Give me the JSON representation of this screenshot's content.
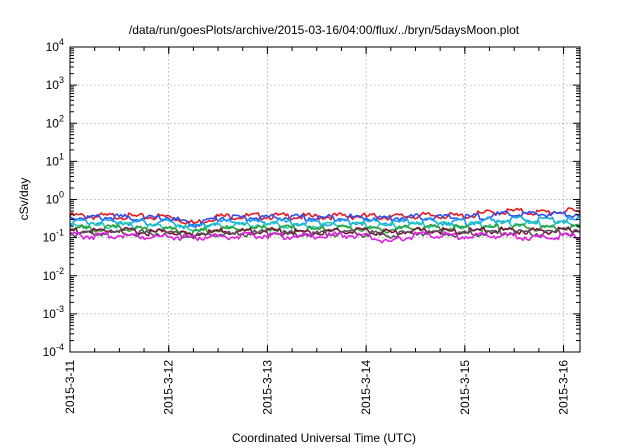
{
  "chart_data": {
    "type": "line",
    "title": "/data/run/goesPlots/archive/2015-03-16/04:00/flux/../bryn/5daysMoon.plot",
    "xlabel": "Coordinated Universal Time (UTC)",
    "ylabel": "cSv/day",
    "yscale": "log",
    "ylim": [
      0.0001,
      10000
    ],
    "xlim": [
      "2015-03-11",
      "2015-03-16 04:00"
    ],
    "grid": true,
    "legend": "none",
    "x_ticks": [
      "2015-3-11",
      "2015-3-12",
      "2015-3-13",
      "2015-3-14",
      "2015-3-15",
      "2015-3-16"
    ],
    "y_ticks": [
      {
        "base": "10",
        "exp": "-4",
        "value": 0.0001
      },
      {
        "base": "10",
        "exp": "-3",
        "value": 0.001
      },
      {
        "base": "10",
        "exp": "-2",
        "value": 0.01
      },
      {
        "base": "10",
        "exp": "-1",
        "value": 0.1
      },
      {
        "base": "10",
        "exp": "0",
        "value": 1
      },
      {
        "base": "10",
        "exp": "1",
        "value": 10
      },
      {
        "base": "10",
        "exp": "2",
        "value": 100
      },
      {
        "base": "10",
        "exp": "3",
        "value": 1000
      },
      {
        "base": "10",
        "exp": "4",
        "value": 10000
      }
    ],
    "x": [
      "2015-03-11 00:00",
      "2015-03-11 06:00",
      "2015-03-11 12:00",
      "2015-03-11 18:00",
      "2015-03-12 00:00",
      "2015-03-12 06:00",
      "2015-03-12 12:00",
      "2015-03-12 18:00",
      "2015-03-13 00:00",
      "2015-03-13 06:00",
      "2015-03-13 12:00",
      "2015-03-13 18:00",
      "2015-03-14 00:00",
      "2015-03-14 06:00",
      "2015-03-14 12:00",
      "2015-03-14 18:00",
      "2015-03-15 00:00",
      "2015-03-15 06:00",
      "2015-03-15 12:00",
      "2015-03-15 18:00",
      "2015-03-16 00:00",
      "2015-03-16 04:00"
    ],
    "series": [
      {
        "color": "#e8191f",
        "values": [
          0.42,
          0.4,
          0.41,
          0.38,
          0.4,
          0.26,
          0.4,
          0.4,
          0.41,
          0.4,
          0.39,
          0.41,
          0.4,
          0.39,
          0.41,
          0.42,
          0.4,
          0.5,
          0.55,
          0.5,
          0.55,
          0.52
        ]
      },
      {
        "color": "#2f4ff0",
        "values": [
          0.38,
          0.37,
          0.38,
          0.35,
          0.37,
          0.24,
          0.37,
          0.37,
          0.38,
          0.37,
          0.36,
          0.38,
          0.37,
          0.36,
          0.38,
          0.38,
          0.37,
          0.42,
          0.46,
          0.45,
          0.47,
          0.46
        ]
      },
      {
        "color": "#1aa4e8",
        "values": [
          0.29,
          0.28,
          0.29,
          0.27,
          0.28,
          0.2,
          0.28,
          0.28,
          0.29,
          0.28,
          0.27,
          0.29,
          0.28,
          0.27,
          0.29,
          0.29,
          0.28,
          0.31,
          0.33,
          0.32,
          0.33,
          0.32
        ]
      },
      {
        "color": "#20c8c0",
        "values": [
          0.24,
          0.23,
          0.24,
          0.22,
          0.23,
          0.17,
          0.23,
          0.23,
          0.24,
          0.23,
          0.22,
          0.24,
          0.23,
          0.22,
          0.24,
          0.24,
          0.23,
          0.25,
          0.26,
          0.25,
          0.26,
          0.25
        ]
      },
      {
        "color": "#30a030",
        "values": [
          0.2,
          0.19,
          0.2,
          0.18,
          0.19,
          0.15,
          0.19,
          0.19,
          0.2,
          0.19,
          0.18,
          0.2,
          0.19,
          0.18,
          0.2,
          0.2,
          0.19,
          0.2,
          0.21,
          0.2,
          0.21,
          0.2
        ]
      },
      {
        "color": "#7a1040",
        "values": [
          0.17,
          0.16,
          0.17,
          0.15,
          0.16,
          0.13,
          0.16,
          0.16,
          0.17,
          0.16,
          0.15,
          0.17,
          0.16,
          0.15,
          0.17,
          0.17,
          0.16,
          0.17,
          0.17,
          0.16,
          0.17,
          0.17
        ]
      },
      {
        "color": "#555555",
        "values": [
          0.15,
          0.14,
          0.15,
          0.14,
          0.14,
          0.12,
          0.14,
          0.14,
          0.15,
          0.14,
          0.14,
          0.15,
          0.14,
          0.13,
          0.15,
          0.15,
          0.14,
          0.15,
          0.15,
          0.14,
          0.15,
          0.15
        ]
      },
      {
        "color": "#e020e0",
        "values": [
          0.13,
          0.12,
          0.13,
          0.12,
          0.12,
          0.11,
          0.12,
          0.12,
          0.13,
          0.12,
          0.12,
          0.13,
          0.12,
          0.085,
          0.13,
          0.13,
          0.12,
          0.13,
          0.12,
          0.11,
          0.12,
          0.12
        ]
      }
    ]
  }
}
